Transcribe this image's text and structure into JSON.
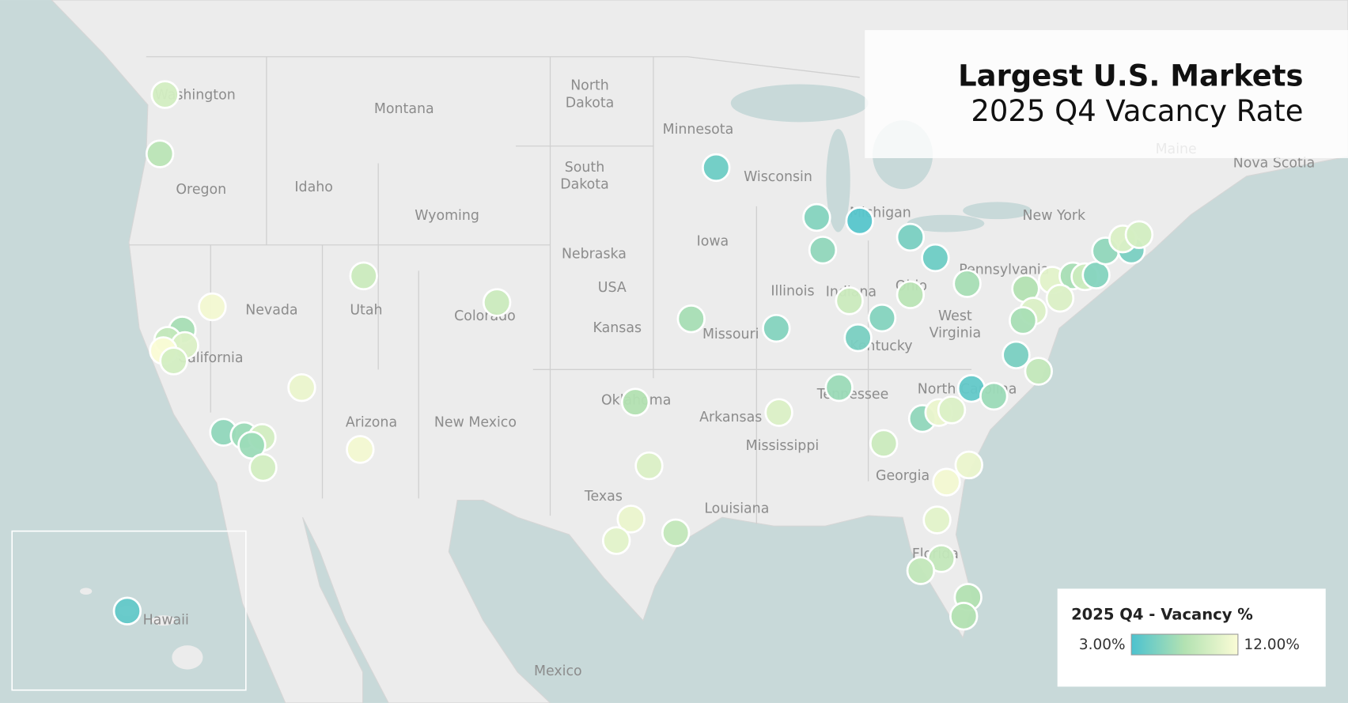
{
  "header": {
    "title": "Largest U.S. Markets",
    "subtitle": "2025 Q4 Vacancy Rate"
  },
  "legend": {
    "title": "2025 Q4 - Vacancy %",
    "min": {
      "value": 3,
      "label": "3.00%"
    },
    "max": {
      "value": 12,
      "label": "12.00%"
    },
    "colorscale": [
      "#4cc2cf",
      "#b3e2b2",
      "#fbfcd6"
    ]
  },
  "map_labels": [
    "Washington",
    "Montana",
    "North",
    "Dakota",
    "Minnesota",
    "Wisconsin",
    "Oregon",
    "Idaho",
    "South",
    "Dakota",
    "Wyoming",
    "Michigan",
    "New York",
    "Iowa",
    "Nebraska",
    "Pennsylvania",
    "USA",
    "Nevada",
    "Utah",
    "Colorado",
    "Illinois",
    "Indiana",
    "Ohio",
    "Kansas",
    "Missouri",
    "West",
    "Virginia",
    "Kentucky",
    "California",
    "Tennessee",
    "Oklahoma",
    "Arkansas",
    "North Carolina",
    "Arizona",
    "New Mexico",
    "Mississippi",
    "Georgia",
    "Texas",
    "Louisiana",
    "Florida",
    "Mexico",
    "Hawaii",
    "Maine",
    "Nova Scotia"
  ],
  "markets": {
    "values": [
      9.5,
      8,
      11.5,
      7,
      8.5,
      10,
      12,
      9.5,
      11,
      6,
      6.5,
      9.5,
      6.5,
      9.5,
      9,
      11.5,
      9,
      4.5,
      5.5,
      3.5,
      6,
      5,
      4.5,
      7,
      8,
      9,
      5.5,
      5,
      7,
      5.5,
      6.5,
      10,
      7.5,
      10,
      11,
      10.5,
      8.5,
      9,
      6,
      11,
      10,
      4,
      6.5,
      7.5,
      10.5,
      7,
      9,
      5.5,
      10,
      10,
      7,
      5,
      8.5,
      6,
      5,
      10,
      9.5,
      11,
      11.5,
      10.5,
      8.5,
      8.5,
      7.5,
      7.5,
      4
    ]
  }
}
